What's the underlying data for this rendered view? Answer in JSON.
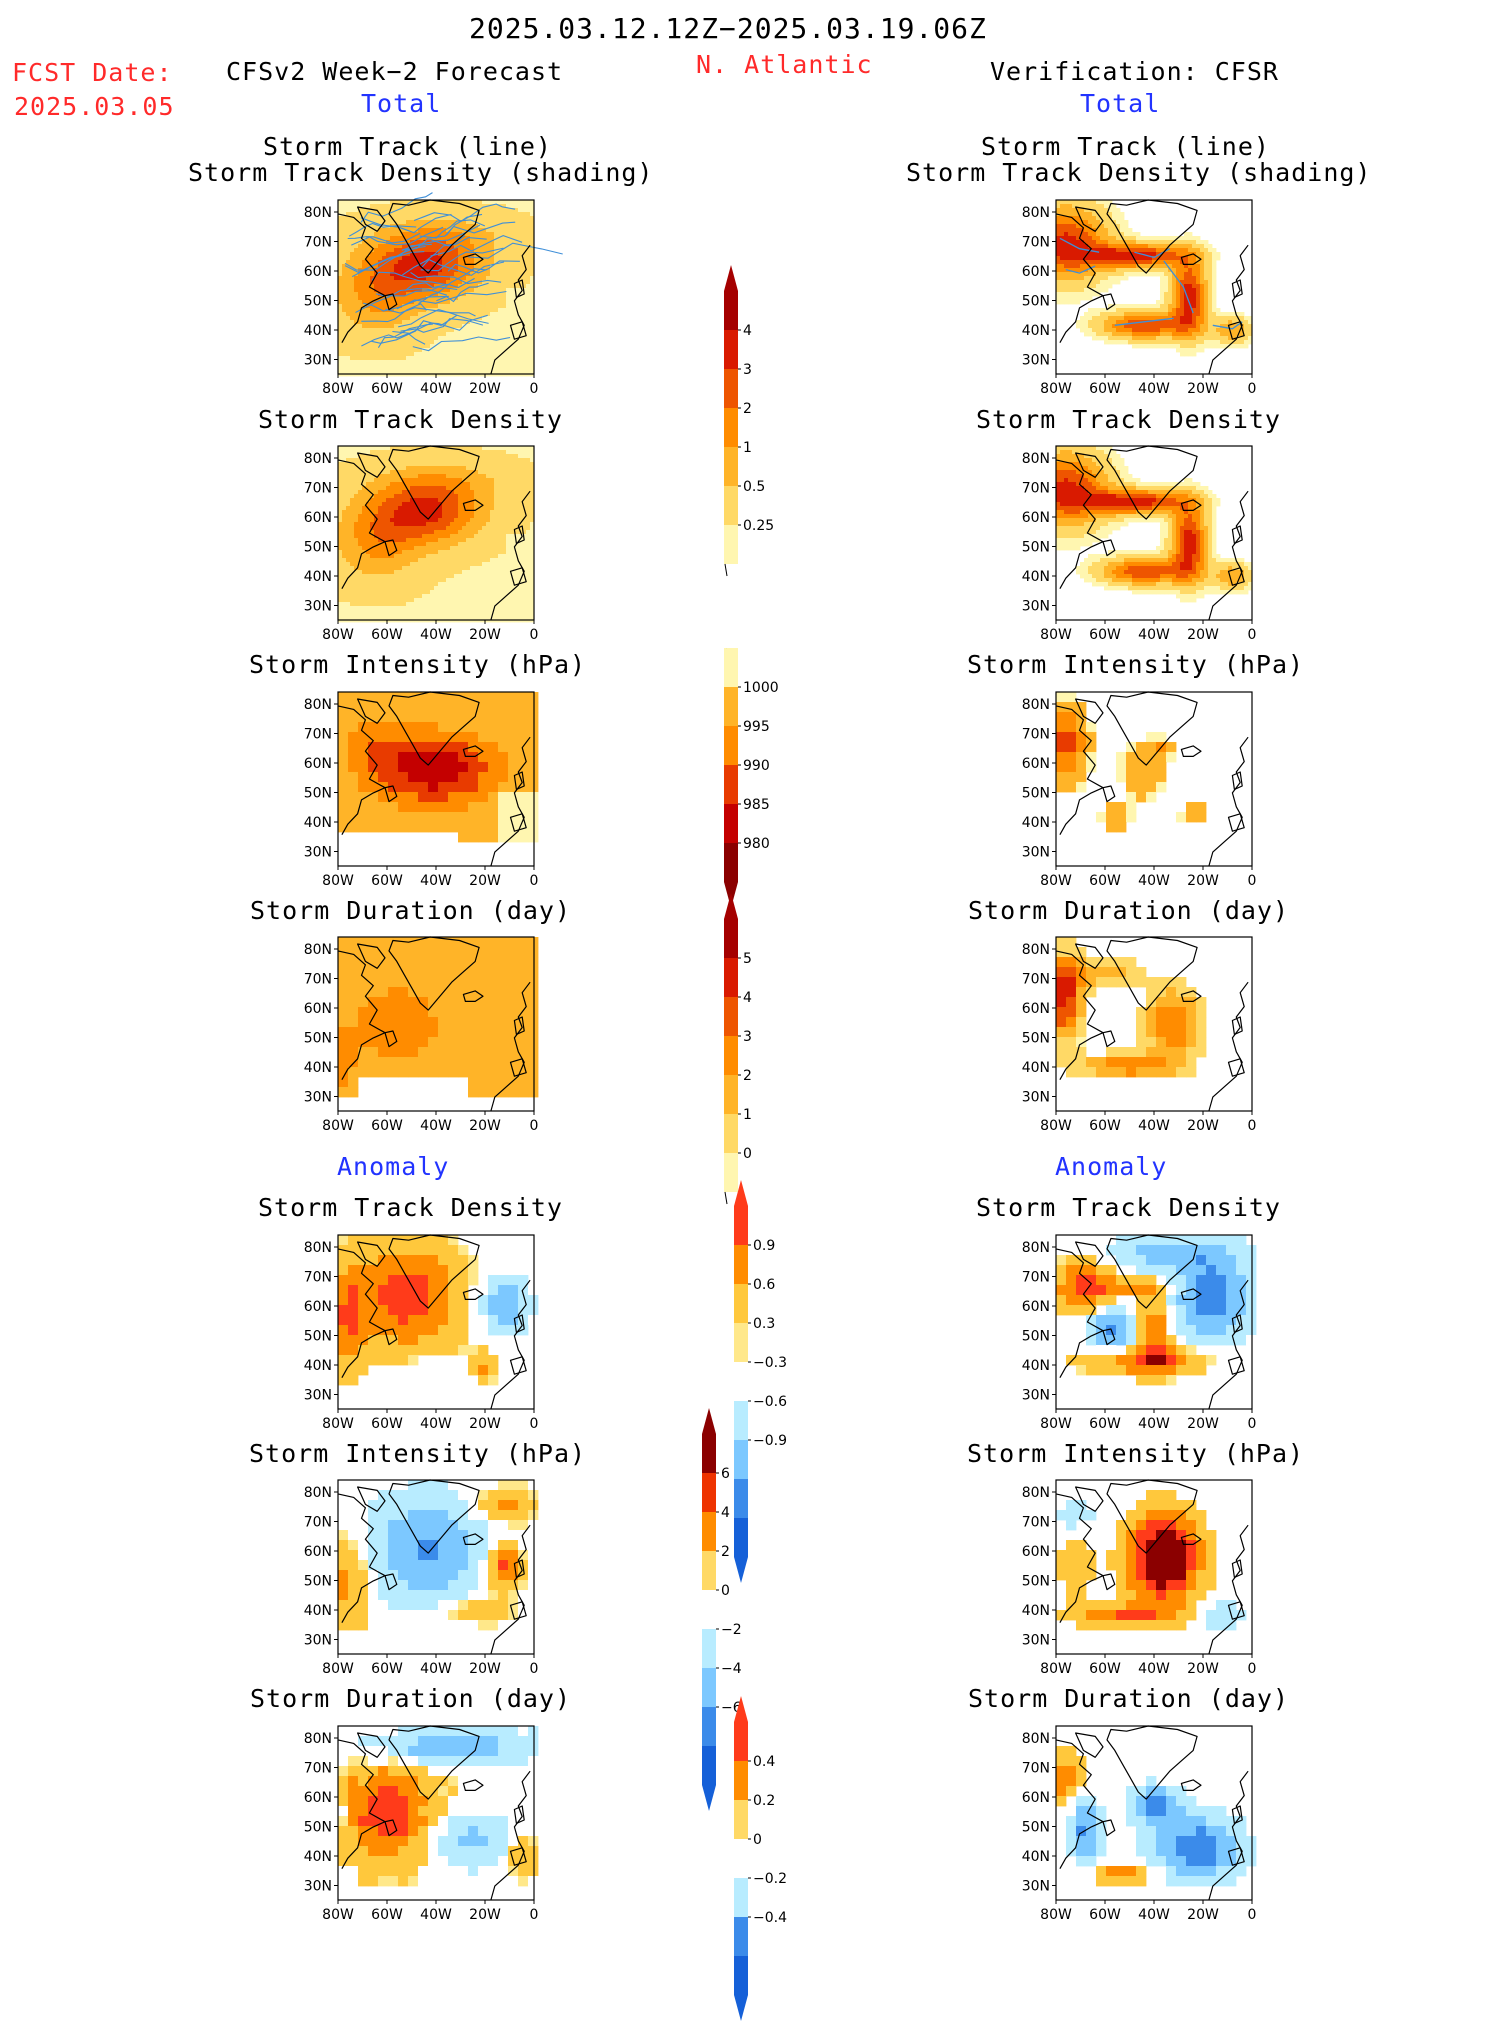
{
  "header": {
    "period": "2025.03.12.12Z−2025.03.19.06Z",
    "fcst_label": "FCST Date:",
    "fcst_date": "2025.03.05",
    "model": "CFSv2 Week−2 Forecast",
    "region": "N. Atlantic",
    "verification": "Verification: CFSR",
    "total_left": "Total",
    "total_right": "Total",
    "anomaly_left": "Anomaly",
    "anomaly_right": "Anomaly"
  },
  "panel_titles": {
    "track_line": "Storm Track (line)",
    "track_shading": "Storm Track Density (shading)",
    "density": "Storm Track Density",
    "intensity": "Storm Intensity (hPa)",
    "duration": "Storm Duration (day)"
  },
  "axes": {
    "lat_ticks": [
      "80N",
      "70N",
      "60N",
      "50N",
      "40N",
      "30N"
    ],
    "lon_ticks": [
      "80W",
      "60W",
      "40W",
      "20W",
      "0"
    ]
  },
  "colorbars": {
    "density": {
      "labels": [
        "4",
        "3",
        "2",
        "1",
        "0.5",
        "0.25"
      ],
      "colors": [
        "#a50000",
        "#d91a00",
        "#ee5500",
        "#ff8c00",
        "#ffb428",
        "#ffd966",
        "#fff6b0"
      ]
    },
    "intensity": {
      "labels": [
        "1000",
        "995",
        "990",
        "985",
        "980"
      ],
      "colors": [
        "#fff6b0",
        "#ffb428",
        "#ff8c00",
        "#e83b00",
        "#c40000",
        "#8b0000"
      ]
    },
    "duration": {
      "labels": [
        "5",
        "4",
        "3",
        "2",
        "1",
        "0"
      ],
      "colors": [
        "#a50000",
        "#d91a00",
        "#ee5500",
        "#ff8c00",
        "#ffb428",
        "#ffd966",
        "#fff6b0"
      ]
    },
    "anom_density": {
      "labels": [
        "0.9",
        "0.6",
        "0.3",
        "−0.3",
        "−0.6",
        "−0.9"
      ],
      "colors": [
        "#ff3b1a",
        "#ff8c00",
        "#ffc83c",
        "#ffe88a",
        "#ffffff",
        "#b8ecff",
        "#7cc8ff",
        "#3b8bea",
        "#1560d8"
      ]
    },
    "anom_intensity": {
      "labels": [
        "6",
        "4",
        "2",
        "0",
        "−2",
        "−4",
        "−6"
      ],
      "colors": [
        "#8b0000",
        "#ee3300",
        "#ff8c00",
        "#ffd966",
        "#ffffff",
        "#b8ecff",
        "#7cc8ff",
        "#3b8bea",
        "#1560d8"
      ]
    },
    "anom_duration": {
      "labels": [
        "0.4",
        "0.2",
        "0",
        "−0.2",
        "−0.4"
      ],
      "colors": [
        "#ff3b1a",
        "#ff8c00",
        "#ffd966",
        "#ffffff",
        "#b8ecff",
        "#3b8bea",
        "#1560d8"
      ]
    }
  }
}
